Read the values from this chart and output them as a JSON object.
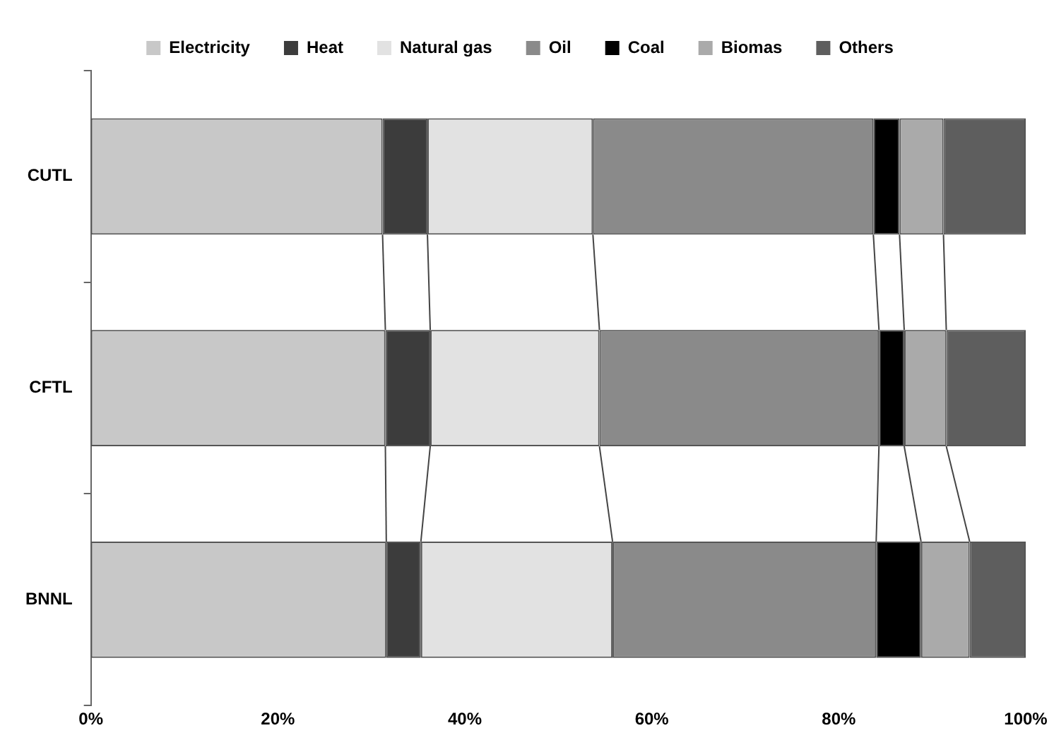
{
  "chart_data": {
    "type": "bar",
    "orientation": "horizontal",
    "stacked": true,
    "categories": [
      "CUTL",
      "CFTL",
      "BNNL"
    ],
    "series": [
      {
        "name": "Electricity",
        "color": "#c8c8c8",
        "values": [
          31.2,
          31.5,
          31.6
        ]
      },
      {
        "name": "Heat",
        "color": "#3c3c3c",
        "values": [
          4.8,
          4.8,
          3.7
        ]
      },
      {
        "name": "Natural gas",
        "color": "#e2e2e2",
        "values": [
          17.7,
          18.1,
          20.5
        ]
      },
      {
        "name": "Oil",
        "color": "#8a8a8a",
        "values": [
          30.0,
          29.9,
          28.2
        ]
      },
      {
        "name": "Coal",
        "color": "#000000",
        "values": [
          2.8,
          2.7,
          4.8
        ]
      },
      {
        "name": "Biomas",
        "color": "#aaaaaa",
        "values": [
          4.7,
          4.5,
          5.2
        ]
      },
      {
        "name": "Others",
        "color": "#5e5e5e",
        "values": [
          8.8,
          8.5,
          6.0
        ]
      }
    ],
    "xlim": [
      0,
      100
    ],
    "xticks": [
      {
        "value": 0,
        "label": "0%"
      },
      {
        "value": 20,
        "label": "20%"
      },
      {
        "value": 40,
        "label": "40%"
      },
      {
        "value": 60,
        "label": "60%"
      },
      {
        "value": 80,
        "label": "80%"
      },
      {
        "value": 100,
        "label": "100%"
      }
    ],
    "grid": false,
    "legend": "top"
  }
}
